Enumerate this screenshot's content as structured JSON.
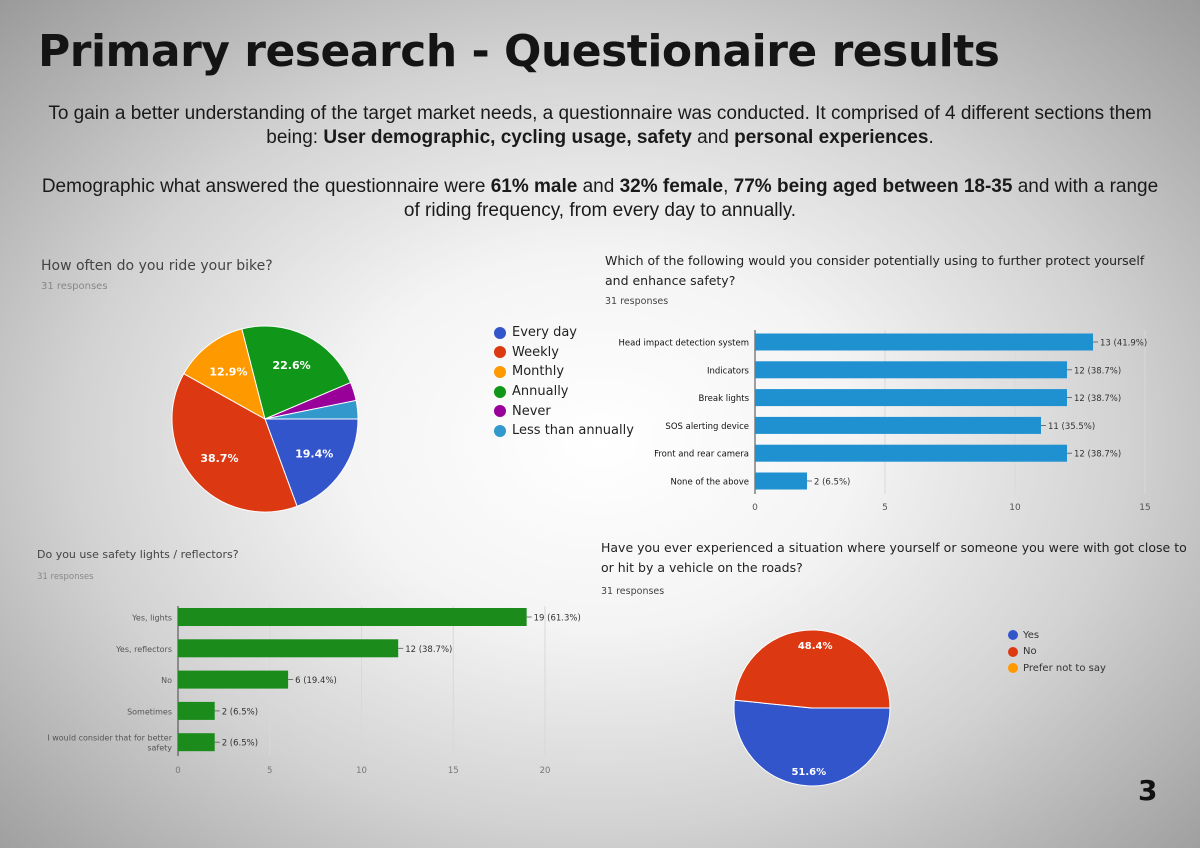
{
  "header": {
    "title": "Primary research - Questionaire results",
    "intro1_a": "To gain a better understanding of the target market needs, a questionnaire was conducted. It comprised of 4 different sections them being: ",
    "intro1_b": "User demographic, cycling usage, safety",
    "intro1_c": " and ",
    "intro1_d": "personal experiences",
    "intro1_e": ".",
    "intro2_a": "Demographic what answered the questionnaire were ",
    "intro2_b": "61% male",
    "intro2_c": " and ",
    "intro2_d": "32% female",
    "intro2_e": ", ",
    "intro2_f": "77% being aged between 18-35",
    "intro2_g": " and with a range of riding frequency, from every day to annually."
  },
  "page_number": "3",
  "chart_data": [
    {
      "type": "pie",
      "title": "How often do you ride your bike?",
      "subtitle": "31 responses",
      "labels": [
        "Every day",
        "Weekly",
        "Monthly",
        "Annually",
        "Never",
        "Less than annually"
      ],
      "values": [
        19.4,
        38.7,
        12.9,
        22.6,
        3.2,
        3.2
      ],
      "slice_labels": [
        "19.4%",
        "38.7%",
        "12.9%",
        "22.6%",
        "",
        ""
      ],
      "colors": [
        "#3355cc",
        "#dc3912",
        "#ff9900",
        "#109618",
        "#990099",
        "#3399cc"
      ],
      "legend_position": "right"
    },
    {
      "type": "bar",
      "orientation": "horizontal",
      "title": "Which of the following would you consider potentially using to further protect yourself and enhance safety?",
      "subtitle": "31 responses",
      "categories": [
        "Head impact detection system",
        "Indicators",
        "Break lights",
        "SOS alerting device",
        "Front and rear camera",
        "None of the above"
      ],
      "values": [
        13,
        12,
        12,
        11,
        12,
        2
      ],
      "value_labels": [
        "13 (41.9%)",
        "12 (38.7%)",
        "12 (38.7%)",
        "11 (35.5%)",
        "12 (38.7%)",
        "2 (6.5%)"
      ],
      "xlim": [
        0,
        15
      ],
      "xticks": [
        0,
        5,
        10,
        15
      ],
      "color": "#1f90d0"
    },
    {
      "type": "bar",
      "orientation": "horizontal",
      "title": "Do you use safety lights / reflectors?",
      "subtitle": "31 responses",
      "categories": [
        "Yes, lights",
        "Yes, reflectors",
        "No",
        "Sometimes",
        "I would consider that for better safety"
      ],
      "category_lines": [
        [
          "Yes, lights"
        ],
        [
          "Yes, reflectors"
        ],
        [
          "No"
        ],
        [
          "Sometimes"
        ],
        [
          "I would consider that for better",
          "safety"
        ]
      ],
      "values": [
        19,
        12,
        6,
        2,
        2
      ],
      "value_labels": [
        "19 (61.3%)",
        "12 (38.7%)",
        "6 (19.4%)",
        "2 (6.5%)",
        "2 (6.5%)"
      ],
      "xlim": [
        0,
        20
      ],
      "xticks": [
        0,
        5,
        10,
        15,
        20
      ],
      "color": "#1b8c1b"
    },
    {
      "type": "pie",
      "title": "Have you ever experienced a situation where yourself or someone you were with got close to or hit by a vehicle on the roads?",
      "subtitle": "31 responses",
      "labels": [
        "Yes",
        "No",
        "Prefer not to say"
      ],
      "values": [
        51.6,
        48.4,
        0
      ],
      "slice_labels": [
        "51.6%",
        "48.4%",
        ""
      ],
      "colors": [
        "#3355cc",
        "#dc3912",
        "#ff9900"
      ],
      "legend_position": "right"
    }
  ]
}
